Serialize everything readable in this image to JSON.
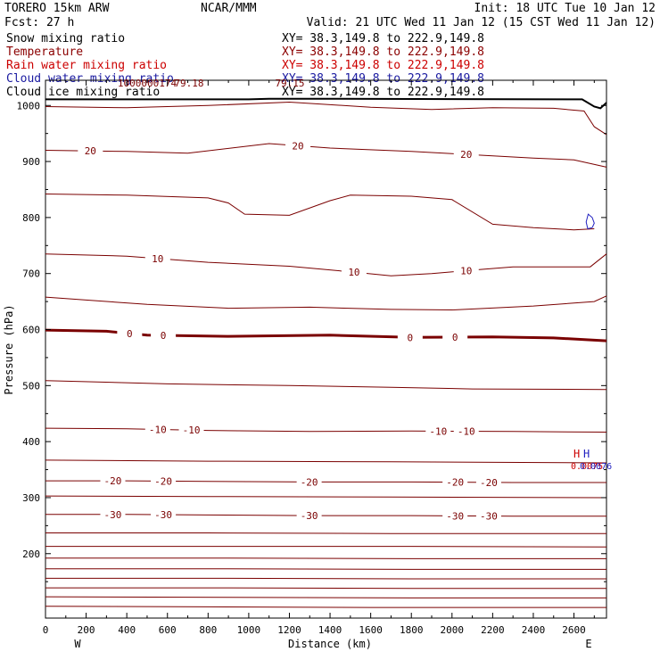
{
  "header": {
    "model": "TORERO  15km ARW",
    "org": "NCAR/MMM",
    "init": "Init: 18 UTC Tue 10 Jan 12",
    "fcst": "Fcst:   27 h",
    "valid": "Valid: 21 UTC Wed 11 Jan 12 (15 CST Wed 11 Jan 12)"
  },
  "legend": [
    {
      "name": "Snow mixing ratio",
      "xy": "XY=  38.3,149.8 to 222.9,149.8",
      "color": "#000000"
    },
    {
      "name": "Temperature",
      "xy": "XY=  38.3,149.8 to 222.9,149.8",
      "color": "#8b0000"
    },
    {
      "name": "Rain water mixing ratio",
      "xy": "XY=  38.3,149.8 to 222.9,149.8",
      "color": "#cc0000"
    },
    {
      "name": "Cloud water mixing ratio",
      "xy": "XY=  38.3,149.8 to 222.9,149.8",
      "color": "#1a1aa0"
    },
    {
      "name": "Cloud ice mixing ratio",
      "xy": "XY=  38.3,149.8 to 222.9,149.8",
      "color": "#000000"
    }
  ],
  "colors": {
    "temperature": "#7a0000",
    "rain": "#cc0000",
    "cloud_water": "#2020c0",
    "terrain": "#000000"
  },
  "chart_data": {
    "type": "line",
    "xlabel": "Distance (km)",
    "ylabel": "Pressure (hPa)",
    "xlim": [
      0,
      2760
    ],
    "ylim": [
      1045,
      85
    ],
    "x_ticks": [
      "0",
      "200",
      "400",
      "600",
      "800",
      "1000",
      "1200",
      "1400",
      "1600",
      "1800",
      "2000",
      "2200",
      "2400",
      "2600"
    ],
    "y_ticks": [
      "200",
      "300",
      "400",
      "500",
      "600",
      "700",
      "800",
      "900",
      "1000"
    ],
    "left_endpoint": "W",
    "right_endpoint": "E",
    "top_labels": [
      "1000000174",
      "79.18",
      "79.15"
    ],
    "right_labels": [
      "H",
      "H",
      "0.0075",
      "0.0076"
    ],
    "isotherms": [
      {
        "value": null,
        "points": [
          [
            0,
            106
          ],
          [
            800,
            105
          ],
          [
            1600,
            104
          ],
          [
            2760,
            104
          ]
        ]
      },
      {
        "value": null,
        "points": [
          [
            0,
            123
          ],
          [
            900,
            122
          ],
          [
            1800,
            121
          ],
          [
            2760,
            121
          ]
        ]
      },
      {
        "value": null,
        "points": [
          [
            0,
            139
          ],
          [
            900,
            139
          ],
          [
            1800,
            138
          ],
          [
            2760,
            138
          ]
        ]
      },
      {
        "value": null,
        "points": [
          [
            0,
            156
          ],
          [
            900,
            156
          ],
          [
            1800,
            155
          ],
          [
            2760,
            155
          ]
        ]
      },
      {
        "value": null,
        "points": [
          [
            0,
            173
          ],
          [
            900,
            173
          ],
          [
            1800,
            172
          ],
          [
            2760,
            172
          ]
        ]
      },
      {
        "value": null,
        "points": [
          [
            0,
            192
          ],
          [
            900,
            192
          ],
          [
            1800,
            191
          ],
          [
            2760,
            191
          ]
        ]
      },
      {
        "value": null,
        "points": [
          [
            0,
            213
          ],
          [
            900,
            213
          ],
          [
            1800,
            213
          ],
          [
            2760,
            212
          ]
        ]
      },
      {
        "value": null,
        "points": [
          [
            0,
            237
          ],
          [
            800,
            237
          ],
          [
            1700,
            236
          ],
          [
            2760,
            236
          ]
        ]
      },
      {
        "value": -30,
        "points": [
          [
            0,
            270
          ],
          [
            400,
            270
          ],
          [
            800,
            269
          ],
          [
            1300,
            268
          ],
          [
            1800,
            268
          ],
          [
            2300,
            267
          ],
          [
            2760,
            267
          ]
        ]
      },
      {
        "value": null,
        "points": [
          [
            0,
            303
          ],
          [
            800,
            302
          ],
          [
            1700,
            301
          ],
          [
            2760,
            300
          ]
        ]
      },
      {
        "value": -20,
        "points": [
          [
            0,
            330
          ],
          [
            400,
            330
          ],
          [
            800,
            329
          ],
          [
            1300,
            328
          ],
          [
            1800,
            328
          ],
          [
            2300,
            327
          ],
          [
            2760,
            327
          ]
        ]
      },
      {
        "value": null,
        "points": [
          [
            0,
            367
          ],
          [
            800,
            365
          ],
          [
            1700,
            364
          ],
          [
            2760,
            362
          ]
        ]
      },
      {
        "value": -10,
        "points": [
          [
            0,
            424
          ],
          [
            400,
            423
          ],
          [
            800,
            420
          ],
          [
            1300,
            418
          ],
          [
            1800,
            419
          ],
          [
            2300,
            418
          ],
          [
            2760,
            417
          ]
        ]
      },
      {
        "value": null,
        "points": [
          [
            0,
            509
          ],
          [
            600,
            503
          ],
          [
            1200,
            500
          ],
          [
            1700,
            497
          ],
          [
            2100,
            494
          ],
          [
            2760,
            493
          ]
        ]
      },
      {
        "value": 0,
        "points": [
          [
            0,
            599
          ],
          [
            300,
            597
          ],
          [
            500,
            590
          ],
          [
            900,
            588
          ],
          [
            1400,
            590
          ],
          [
            1800,
            586
          ],
          [
            2200,
            587
          ],
          [
            2500,
            585
          ],
          [
            2760,
            580
          ]
        ],
        "bold": true
      },
      {
        "value": null,
        "points": [
          [
            0,
            658
          ],
          [
            500,
            645
          ],
          [
            900,
            638
          ],
          [
            1300,
            640
          ],
          [
            1700,
            636
          ],
          [
            2000,
            635
          ],
          [
            2400,
            642
          ],
          [
            2700,
            650
          ],
          [
            2760,
            660
          ]
        ]
      },
      {
        "value": 10,
        "points": [
          [
            0,
            735
          ],
          [
            400,
            731
          ],
          [
            800,
            720
          ],
          [
            1200,
            713
          ],
          [
            1500,
            703
          ],
          [
            1700,
            696
          ],
          [
            1900,
            700
          ],
          [
            2100,
            706
          ],
          [
            2300,
            712
          ],
          [
            2550,
            712
          ],
          [
            2680,
            712
          ],
          [
            2760,
            735
          ]
        ]
      },
      {
        "value": null,
        "points": [
          [
            0,
            842
          ],
          [
            400,
            840
          ],
          [
            800,
            835
          ],
          [
            900,
            826
          ],
          [
            980,
            806
          ],
          [
            1200,
            804
          ],
          [
            1400,
            830
          ],
          [
            1500,
            840
          ],
          [
            1800,
            838
          ],
          [
            2000,
            832
          ],
          [
            2200,
            788
          ],
          [
            2400,
            782
          ],
          [
            2600,
            778
          ],
          [
            2700,
            780
          ]
        ]
      },
      {
        "value": 20,
        "points": [
          [
            0,
            920
          ],
          [
            400,
            918
          ],
          [
            700,
            915
          ],
          [
            1100,
            932
          ],
          [
            1400,
            924
          ],
          [
            1800,
            918
          ],
          [
            2100,
            912
          ],
          [
            2400,
            906
          ],
          [
            2600,
            903
          ],
          [
            2760,
            890
          ]
        ]
      },
      {
        "value": null,
        "points": [
          [
            0,
            998
          ],
          [
            400,
            996
          ],
          [
            800,
            1000
          ],
          [
            1200,
            1006
          ],
          [
            1600,
            997
          ],
          [
            1900,
            993
          ],
          [
            2200,
            996
          ],
          [
            2500,
            995
          ],
          [
            2650,
            990
          ],
          [
            2700,
            962
          ],
          [
            2760,
            948
          ]
        ]
      }
    ],
    "terrain": [
      [
        0,
        1011
      ],
      [
        1000,
        1011
      ],
      [
        1100,
        1012
      ],
      [
        1300,
        1012
      ],
      [
        2640,
        1011
      ],
      [
        2700,
        998
      ],
      [
        2730,
        995
      ],
      [
        2760,
        1005
      ]
    ],
    "cloud_water_contour": [
      [
        2690,
        782
      ],
      [
        2700,
        790
      ],
      [
        2690,
        800
      ],
      [
        2670,
        806
      ],
      [
        2660,
        792
      ],
      [
        2668,
        780
      ],
      [
        2690,
        782
      ]
    ]
  }
}
